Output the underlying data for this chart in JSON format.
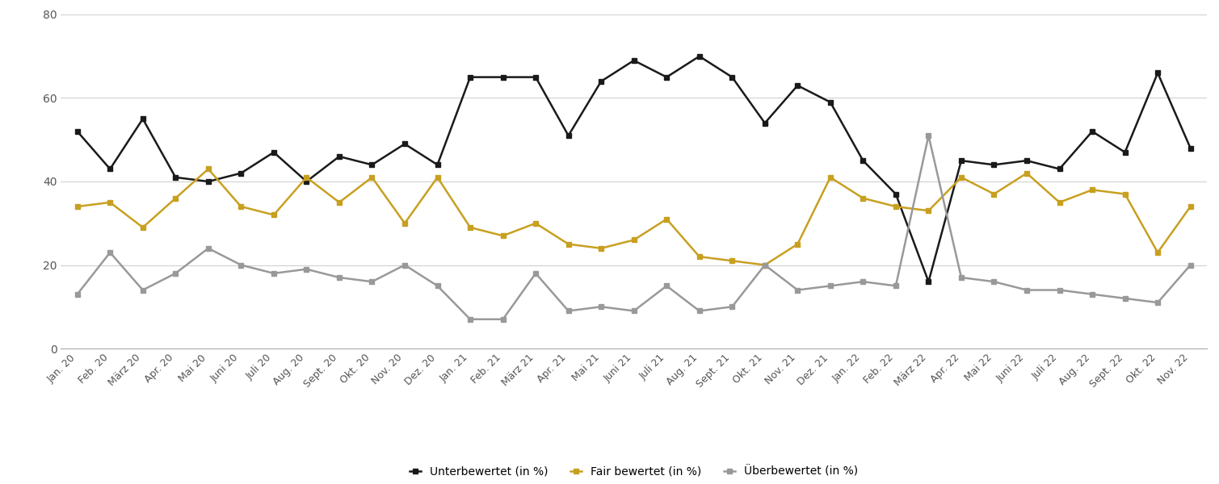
{
  "labels": [
    "Jan. 20",
    "Feb. 20",
    "März 20",
    "Apr. 20",
    "Mai 20",
    "Juni 20",
    "Juli 20",
    "Aug. 20",
    "Sept. 20",
    "Okt. 20",
    "Nov. 20",
    "Dez. 20",
    "Jan. 21",
    "Feb. 21",
    "März 21",
    "Apr. 21",
    "Mai 21",
    "Juni 21",
    "Juli 21",
    "Aug. 21",
    "Sept. 21",
    "Okt. 21",
    "Nov. 21",
    "Dez. 21",
    "Jan. 22",
    "Feb. 22",
    "März 22",
    "Apr. 22",
    "Mai 22",
    "Juni 22",
    "Juli 22",
    "Aug. 22",
    "Sept. 22",
    "Okt. 22",
    "Nov. 22"
  ],
  "unterbewertet": [
    52,
    43,
    55,
    41,
    40,
    42,
    47,
    40,
    46,
    44,
    49,
    44,
    65,
    65,
    65,
    51,
    64,
    69,
    65,
    70,
    65,
    54,
    63,
    59,
    45,
    37,
    16,
    45,
    44,
    45,
    43,
    52,
    47,
    66,
    48
  ],
  "fair_bewertet": [
    34,
    35,
    29,
    36,
    43,
    34,
    32,
    41,
    35,
    41,
    30,
    41,
    29,
    27,
    30,
    25,
    24,
    26,
    31,
    22,
    21,
    20,
    25,
    41,
    36,
    34,
    33,
    41,
    37,
    42,
    35,
    38,
    37,
    23,
    34
  ],
  "ueberbewertet": [
    13,
    23,
    14,
    18,
    24,
    20,
    18,
    19,
    17,
    16,
    20,
    15,
    7,
    7,
    18,
    9,
    10,
    9,
    15,
    9,
    10,
    20,
    14,
    15,
    16,
    15,
    51,
    17,
    16,
    14,
    14,
    13,
    12,
    11,
    20
  ],
  "unterbewertet_color": "#1a1a1a",
  "fair_bewertet_color": "#c8a020",
  "ueberbewertet_color": "#999999",
  "marker": "s",
  "markersize": 5,
  "linewidth": 1.8,
  "ylim": [
    0,
    80
  ],
  "yticks": [
    0,
    20,
    40,
    60,
    80
  ],
  "legend_labels": [
    "Unterbewertet (in %)",
    "Fair bewertet (in %)",
    "Überbewertet (in %)"
  ],
  "grid_color": "#d0d0d0",
  "background_color": "#ffffff"
}
